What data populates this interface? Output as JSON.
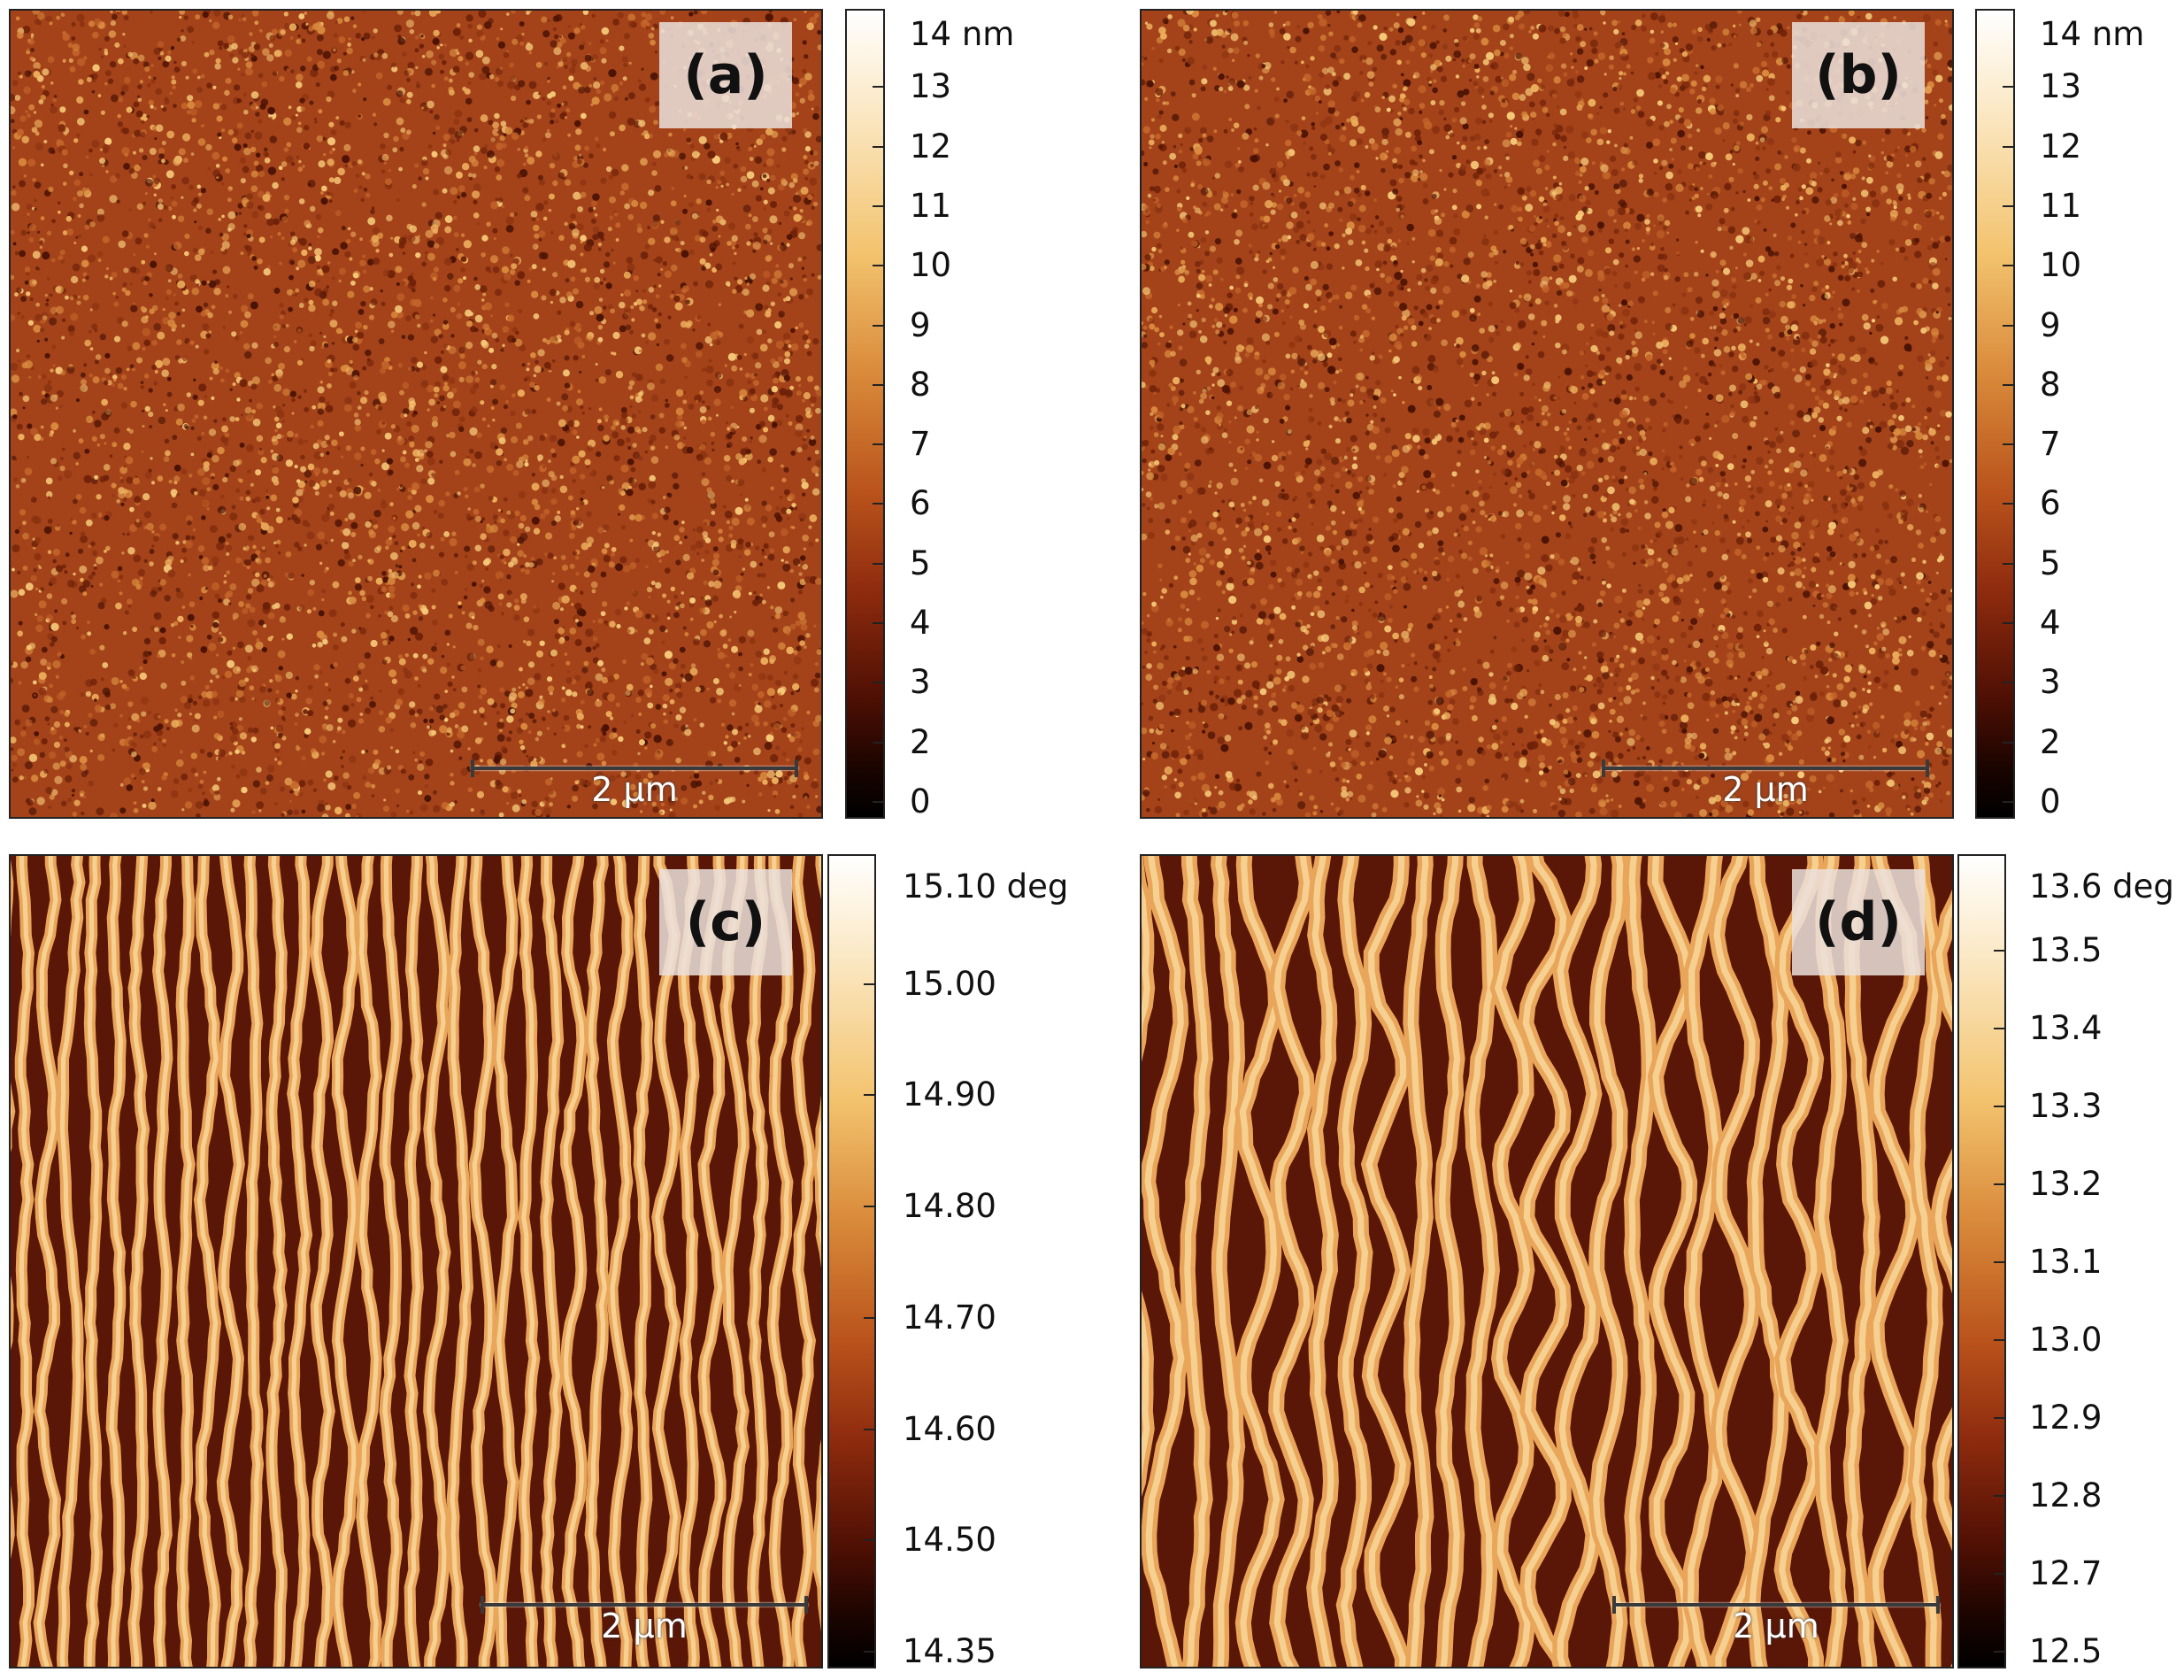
{
  "panels": [
    {
      "label": "(a)",
      "kind": "height",
      "scale_bar": "2 µm",
      "colorbar": {
        "unit_label": "14 nm",
        "ticks": [
          "13",
          "12",
          "11",
          "10",
          "9",
          "8",
          "7",
          "6",
          "5",
          "4",
          "3",
          "2",
          "0"
        ]
      }
    },
    {
      "label": "(b)",
      "kind": "height",
      "scale_bar": "2 µm",
      "colorbar": {
        "unit_label": "14 nm",
        "ticks": [
          "13",
          "12",
          "11",
          "10",
          "9",
          "8",
          "7",
          "6",
          "5",
          "4",
          "3",
          "2",
          "0"
        ]
      }
    },
    {
      "label": "(c)",
      "kind": "phase",
      "scale_bar": "2 µm",
      "colorbar": {
        "unit_label": "15.10 deg",
        "ticks": [
          "15.00",
          "14.90",
          "14.80",
          "14.70",
          "14.60",
          "14.50",
          "14.35"
        ]
      }
    },
    {
      "label": "(d)",
      "kind": "phase",
      "scale_bar": "2 µm",
      "colorbar": {
        "unit_label": "13.6 deg",
        "ticks": [
          "13.5",
          "13.4",
          "13.3",
          "13.2",
          "13.1",
          "13.0",
          "12.9",
          "12.8",
          "12.7",
          "12.5"
        ]
      }
    }
  ],
  "colors": {
    "surface_base": "#a8471a",
    "surface_dark": "#3a0a02",
    "surface_light": "#f7c878",
    "colorbar_top": "#ffffff",
    "colorbar_bottom": "#000000"
  }
}
